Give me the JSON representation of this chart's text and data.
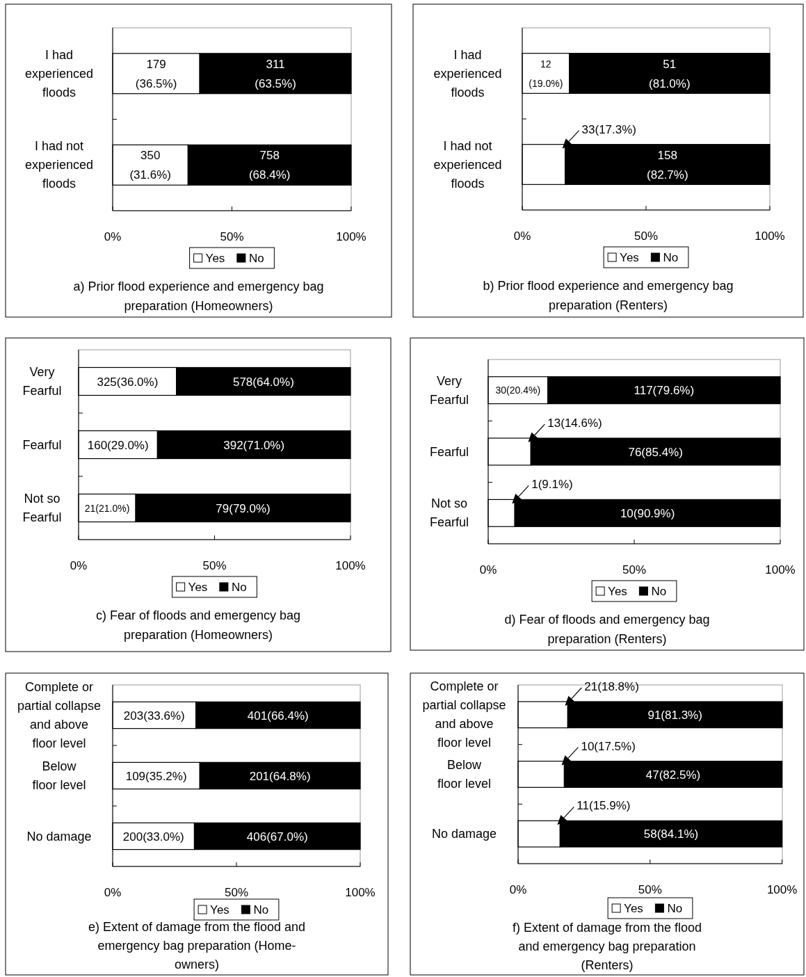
{
  "chart_data": [
    {
      "type": "bar",
      "orientation": "horizontal",
      "stacked": true,
      "title": "a) Prior flood experience and emergency bag\npreparation (Homeowners)",
      "categories": [
        "I had\nexperienced\nfloods",
        "I had not\nexperienced\nfloods"
      ],
      "series": [
        {
          "name": "Yes",
          "color": "#ffffff",
          "values": [
            36.5,
            31.6
          ],
          "value_labels": [
            "179\n(36.5%)",
            "350\n(31.6%)"
          ]
        },
        {
          "name": "No",
          "color": "#000000",
          "values": [
            63.5,
            68.4
          ],
          "value_labels": [
            "311\n(63.5%)",
            "758\n(68.4%)"
          ]
        }
      ],
      "xlim": [
        0,
        100
      ],
      "xticks": [
        {
          "value": 0,
          "label": "0%"
        },
        {
          "value": 50,
          "label": "50%"
        },
        {
          "value": 100,
          "label": "100%"
        }
      ],
      "legend": "bottom"
    },
    {
      "type": "bar",
      "orientation": "horizontal",
      "stacked": true,
      "title": "b) Prior flood experience and emergency bag\npreparation (Renters)",
      "categories": [
        "I had\nexperienced\nfloods",
        "I had not\nexperienced\nfloods"
      ],
      "series": [
        {
          "name": "Yes",
          "color": "#ffffff",
          "values": [
            19.0,
            17.3
          ],
          "value_labels": [
            "12\n(19.0%)",
            "33(17.3%)"
          ]
        },
        {
          "name": "No",
          "color": "#000000",
          "values": [
            81.0,
            82.7
          ],
          "value_labels": [
            "51\n(81.0%)",
            "158\n(82.7%)"
          ]
        }
      ],
      "xlim": [
        0,
        100
      ],
      "xticks": [
        {
          "value": 0,
          "label": "0%"
        },
        {
          "value": 50,
          "label": "50%"
        },
        {
          "value": 100,
          "label": "100%"
        }
      ],
      "legend": "bottom"
    },
    {
      "type": "bar",
      "orientation": "horizontal",
      "stacked": true,
      "title": "c) Fear of floods and emergency bag\npreparation (Homeowners)",
      "categories": [
        "Very\nFearful",
        "Fearful",
        "Not so\nFearful"
      ],
      "series": [
        {
          "name": "Yes",
          "color": "#ffffff",
          "values": [
            36.0,
            29.0,
            21.0
          ],
          "value_labels": [
            "325(36.0%)",
            "160(29.0%)",
            "21(21.0%)"
          ]
        },
        {
          "name": "No",
          "color": "#000000",
          "values": [
            64.0,
            71.0,
            79.0
          ],
          "value_labels": [
            "578(64.0%)",
            "392(71.0%)",
            "79(79.0%)"
          ]
        }
      ],
      "xlim": [
        0,
        100
      ],
      "xticks": [
        {
          "value": 0,
          "label": "0%"
        },
        {
          "value": 50,
          "label": "50%"
        },
        {
          "value": 100,
          "label": "100%"
        }
      ],
      "legend": "bottom"
    },
    {
      "type": "bar",
      "orientation": "horizontal",
      "stacked": true,
      "title": "d) Fear of floods and emergency bag\npreparation (Renters)",
      "categories": [
        "Very\nFearful",
        "Fearful",
        "Not so\nFearful"
      ],
      "series": [
        {
          "name": "Yes",
          "color": "#ffffff",
          "values": [
            20.4,
            14.6,
            9.1
          ],
          "value_labels": [
            "30(20.4%)",
            "13(14.6%)",
            "1(9.1%)"
          ]
        },
        {
          "name": "No",
          "color": "#000000",
          "values": [
            79.6,
            85.4,
            90.9
          ],
          "value_labels": [
            "117(79.6%)",
            "76(85.4%)",
            "10(90.9%)"
          ]
        }
      ],
      "xlim": [
        0,
        100
      ],
      "xticks": [
        {
          "value": 0,
          "label": "0%"
        },
        {
          "value": 50,
          "label": "50%"
        },
        {
          "value": 100,
          "label": "100%"
        }
      ],
      "legend": "bottom"
    },
    {
      "type": "bar",
      "orientation": "horizontal",
      "stacked": true,
      "title": "e) Extent of damage from the flood and\nemergency bag preparation (Home-\nowners)",
      "categories": [
        "Complete or\npartial collapse\nand above\nfloor level",
        "Below\nfloor level",
        "No damage"
      ],
      "series": [
        {
          "name": "Yes",
          "color": "#ffffff",
          "values": [
            33.6,
            35.2,
            33.0
          ],
          "value_labels": [
            "203(33.6%)",
            "109(35.2%)",
            "200(33.0%)"
          ]
        },
        {
          "name": "No",
          "color": "#000000",
          "values": [
            66.4,
            64.8,
            67.0
          ],
          "value_labels": [
            "401(66.4%)",
            "201(64.8%)",
            "406(67.0%)"
          ]
        }
      ],
      "xlim": [
        0,
        100
      ],
      "xticks": [
        {
          "value": 0,
          "label": "0%"
        },
        {
          "value": 50,
          "label": "50%"
        },
        {
          "value": 100,
          "label": "100%"
        }
      ],
      "legend": "bottom"
    },
    {
      "type": "bar",
      "orientation": "horizontal",
      "stacked": true,
      "title": "f) Extent of damage from the flood\nand emergency bag preparation\n(Renters)",
      "categories": [
        "Complete or\npartial collapse\nand above\nfloor level",
        "Below\nfloor level",
        "No damage"
      ],
      "series": [
        {
          "name": "Yes",
          "color": "#ffffff",
          "values": [
            18.8,
            17.5,
            15.9
          ],
          "value_labels": [
            "21(18.8%)",
            "10(17.5%)",
            "11(15.9%)"
          ]
        },
        {
          "name": "No",
          "color": "#000000",
          "values": [
            81.3,
            82.5,
            84.1
          ],
          "value_labels": [
            "91(81.3%)",
            "47(82.5%)",
            "58(84.1%)"
          ]
        }
      ],
      "xlim": [
        0,
        100.1
      ],
      "xticks": [
        {
          "value": 0,
          "label": "0%"
        },
        {
          "value": 50,
          "label": "50%"
        },
        {
          "value": 100,
          "label": "100%"
        }
      ],
      "legend": "bottom"
    }
  ]
}
